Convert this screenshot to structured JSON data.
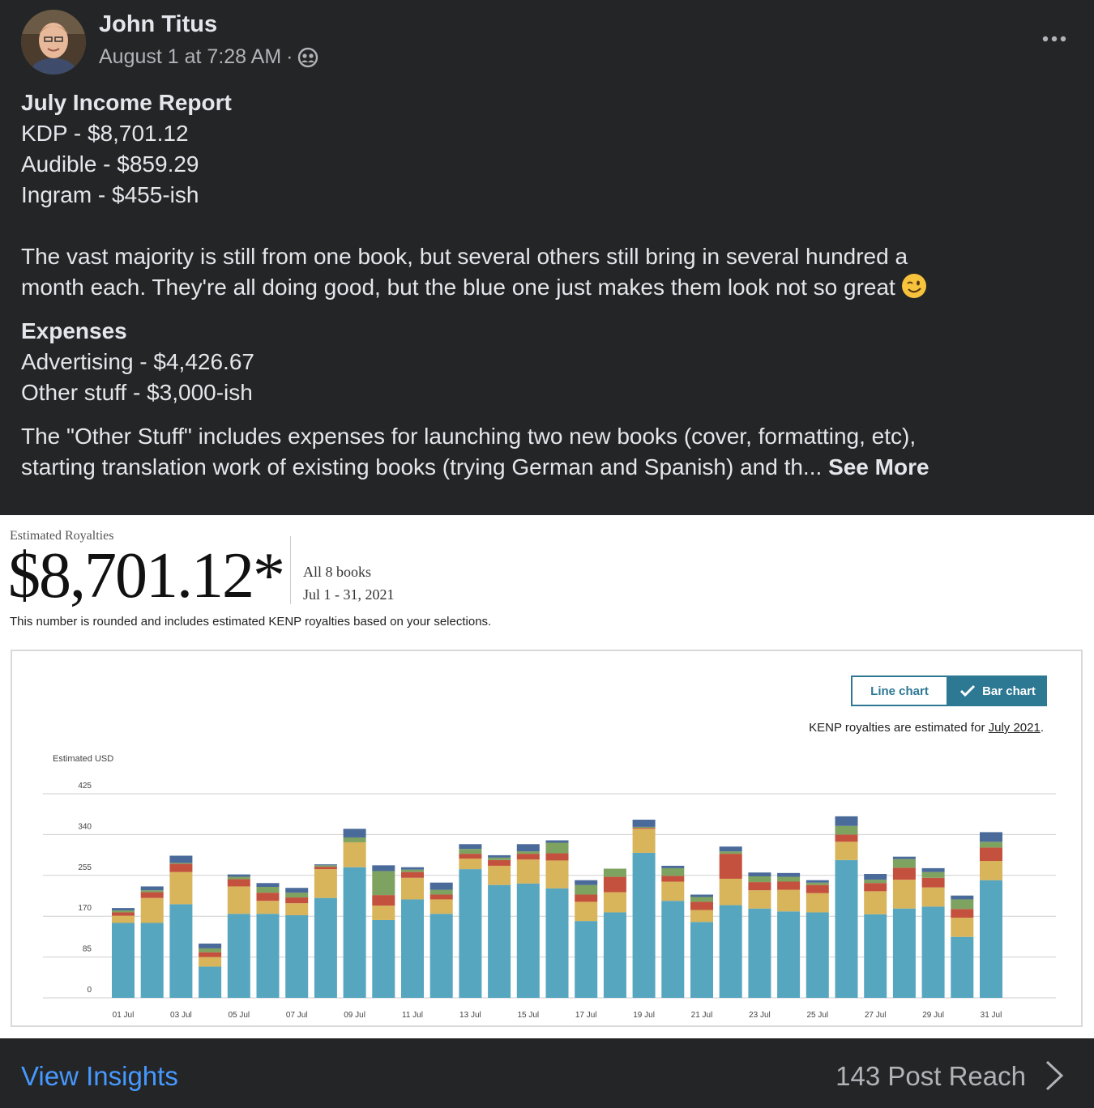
{
  "post": {
    "author": "John Titus",
    "timestamp": "August 1 at 7:28 AM",
    "separator": "·",
    "privacy_icon": "friends-icon",
    "title": "July Income Report",
    "income_lines": [
      "KDP - $8,701.12",
      "Audible - $859.29",
      "Ingram - $455-ish"
    ],
    "paragraph1_line1": "The vast majority is still from one book, but several others still bring in several hundred a",
    "paragraph1_line2": "month each. They're all doing good, but the blue one just makes them look not so great",
    "emoji": "winking-face-emoji",
    "expenses_title": "Expenses",
    "expense_lines": [
      "Advertising - $4,426.67",
      "Other stuff - $3,000-ish"
    ],
    "paragraph2_line1": "The \"Other Stuff\" includes expenses for launching two new books (cover, formatting, etc),",
    "paragraph2_line2": "starting translation work of existing books (trying German and Spanish) and th...",
    "see_more": "See More"
  },
  "report": {
    "label": "Estimated Royalties",
    "amount": "$8,701.12*",
    "books": "All 8 books",
    "range": "Jul 1 - 31, 2021",
    "note": "This number is rounded and includes estimated KENP royalties based on your selections.",
    "toggle_line": "Line chart",
    "toggle_bar": "Bar chart",
    "kenp_prefix": "KENP royalties are estimated for ",
    "kenp_link": "July 2021",
    "kenp_suffix": "."
  },
  "chart_data": {
    "type": "bar",
    "stacked": true,
    "ylabel": "Estimated USD",
    "ylim": [
      0,
      425
    ],
    "yticks": [
      0,
      85,
      170,
      255,
      340,
      425
    ],
    "grid": true,
    "categories": [
      "01 Jul",
      "02 Jul",
      "03 Jul",
      "04 Jul",
      "05 Jul",
      "06 Jul",
      "07 Jul",
      "08 Jul",
      "09 Jul",
      "10 Jul",
      "11 Jul",
      "12 Jul",
      "13 Jul",
      "14 Jul",
      "15 Jul",
      "16 Jul",
      "17 Jul",
      "18 Jul",
      "19 Jul",
      "20 Jul",
      "21 Jul",
      "22 Jul",
      "23 Jul",
      "24 Jul",
      "25 Jul",
      "26 Jul",
      "27 Jul",
      "28 Jul",
      "29 Jul",
      "30 Jul",
      "31 Jul"
    ],
    "xtick_labels": [
      "01 Jul",
      "03 Jul",
      "05 Jul",
      "07 Jul",
      "09 Jul",
      "11 Jul",
      "13 Jul",
      "15 Jul",
      "17 Jul",
      "19 Jul",
      "21 Jul",
      "23 Jul",
      "25 Jul",
      "27 Jul",
      "29 Jul",
      "31 Jul"
    ],
    "series": [
      {
        "color": "#56a6c0",
        "values": [
          156,
          156,
          195,
          65,
          175,
          175,
          172,
          208,
          272,
          162,
          205,
          175,
          268,
          235,
          238,
          228,
          160,
          178,
          302,
          202,
          158,
          193,
          186,
          180,
          178,
          287,
          174,
          186,
          190,
          127,
          245
        ]
      },
      {
        "color": "#d8b45a",
        "values": [
          15,
          52,
          67,
          20,
          57,
          27,
          25,
          60,
          52,
          30,
          45,
          30,
          22,
          40,
          50,
          58,
          40,
          42,
          50,
          40,
          25,
          55,
          38,
          45,
          40,
          38,
          48,
          60,
          40,
          40,
          40
        ]
      },
      {
        "color": "#c4513e",
        "values": [
          7,
          12,
          17,
          10,
          15,
          17,
          12,
          5,
          0,
          22,
          12,
          10,
          10,
          12,
          12,
          15,
          15,
          32,
          2,
          12,
          17,
          52,
          17,
          17,
          17,
          15,
          17,
          25,
          20,
          18,
          28
        ]
      },
      {
        "color": "#7ea25f",
        "values": [
          4,
          4,
          2,
          8,
          5,
          12,
          10,
          3,
          10,
          50,
          5,
          10,
          10,
          5,
          5,
          22,
          20,
          17,
          2,
          16,
          10,
          5,
          12,
          10,
          5,
          18,
          7,
          18,
          12,
          20,
          12
        ]
      },
      {
        "color": "#4a6a9a",
        "values": [
          5,
          8,
          15,
          10,
          5,
          8,
          10,
          2,
          18,
          12,
          5,
          15,
          10,
          5,
          15,
          5,
          10,
          0,
          15,
          5,
          5,
          10,
          8,
          8,
          5,
          20,
          12,
          5,
          8,
          8,
          20
        ]
      }
    ]
  },
  "footer": {
    "view_insights": "View Insights",
    "reach": "143 Post Reach"
  }
}
